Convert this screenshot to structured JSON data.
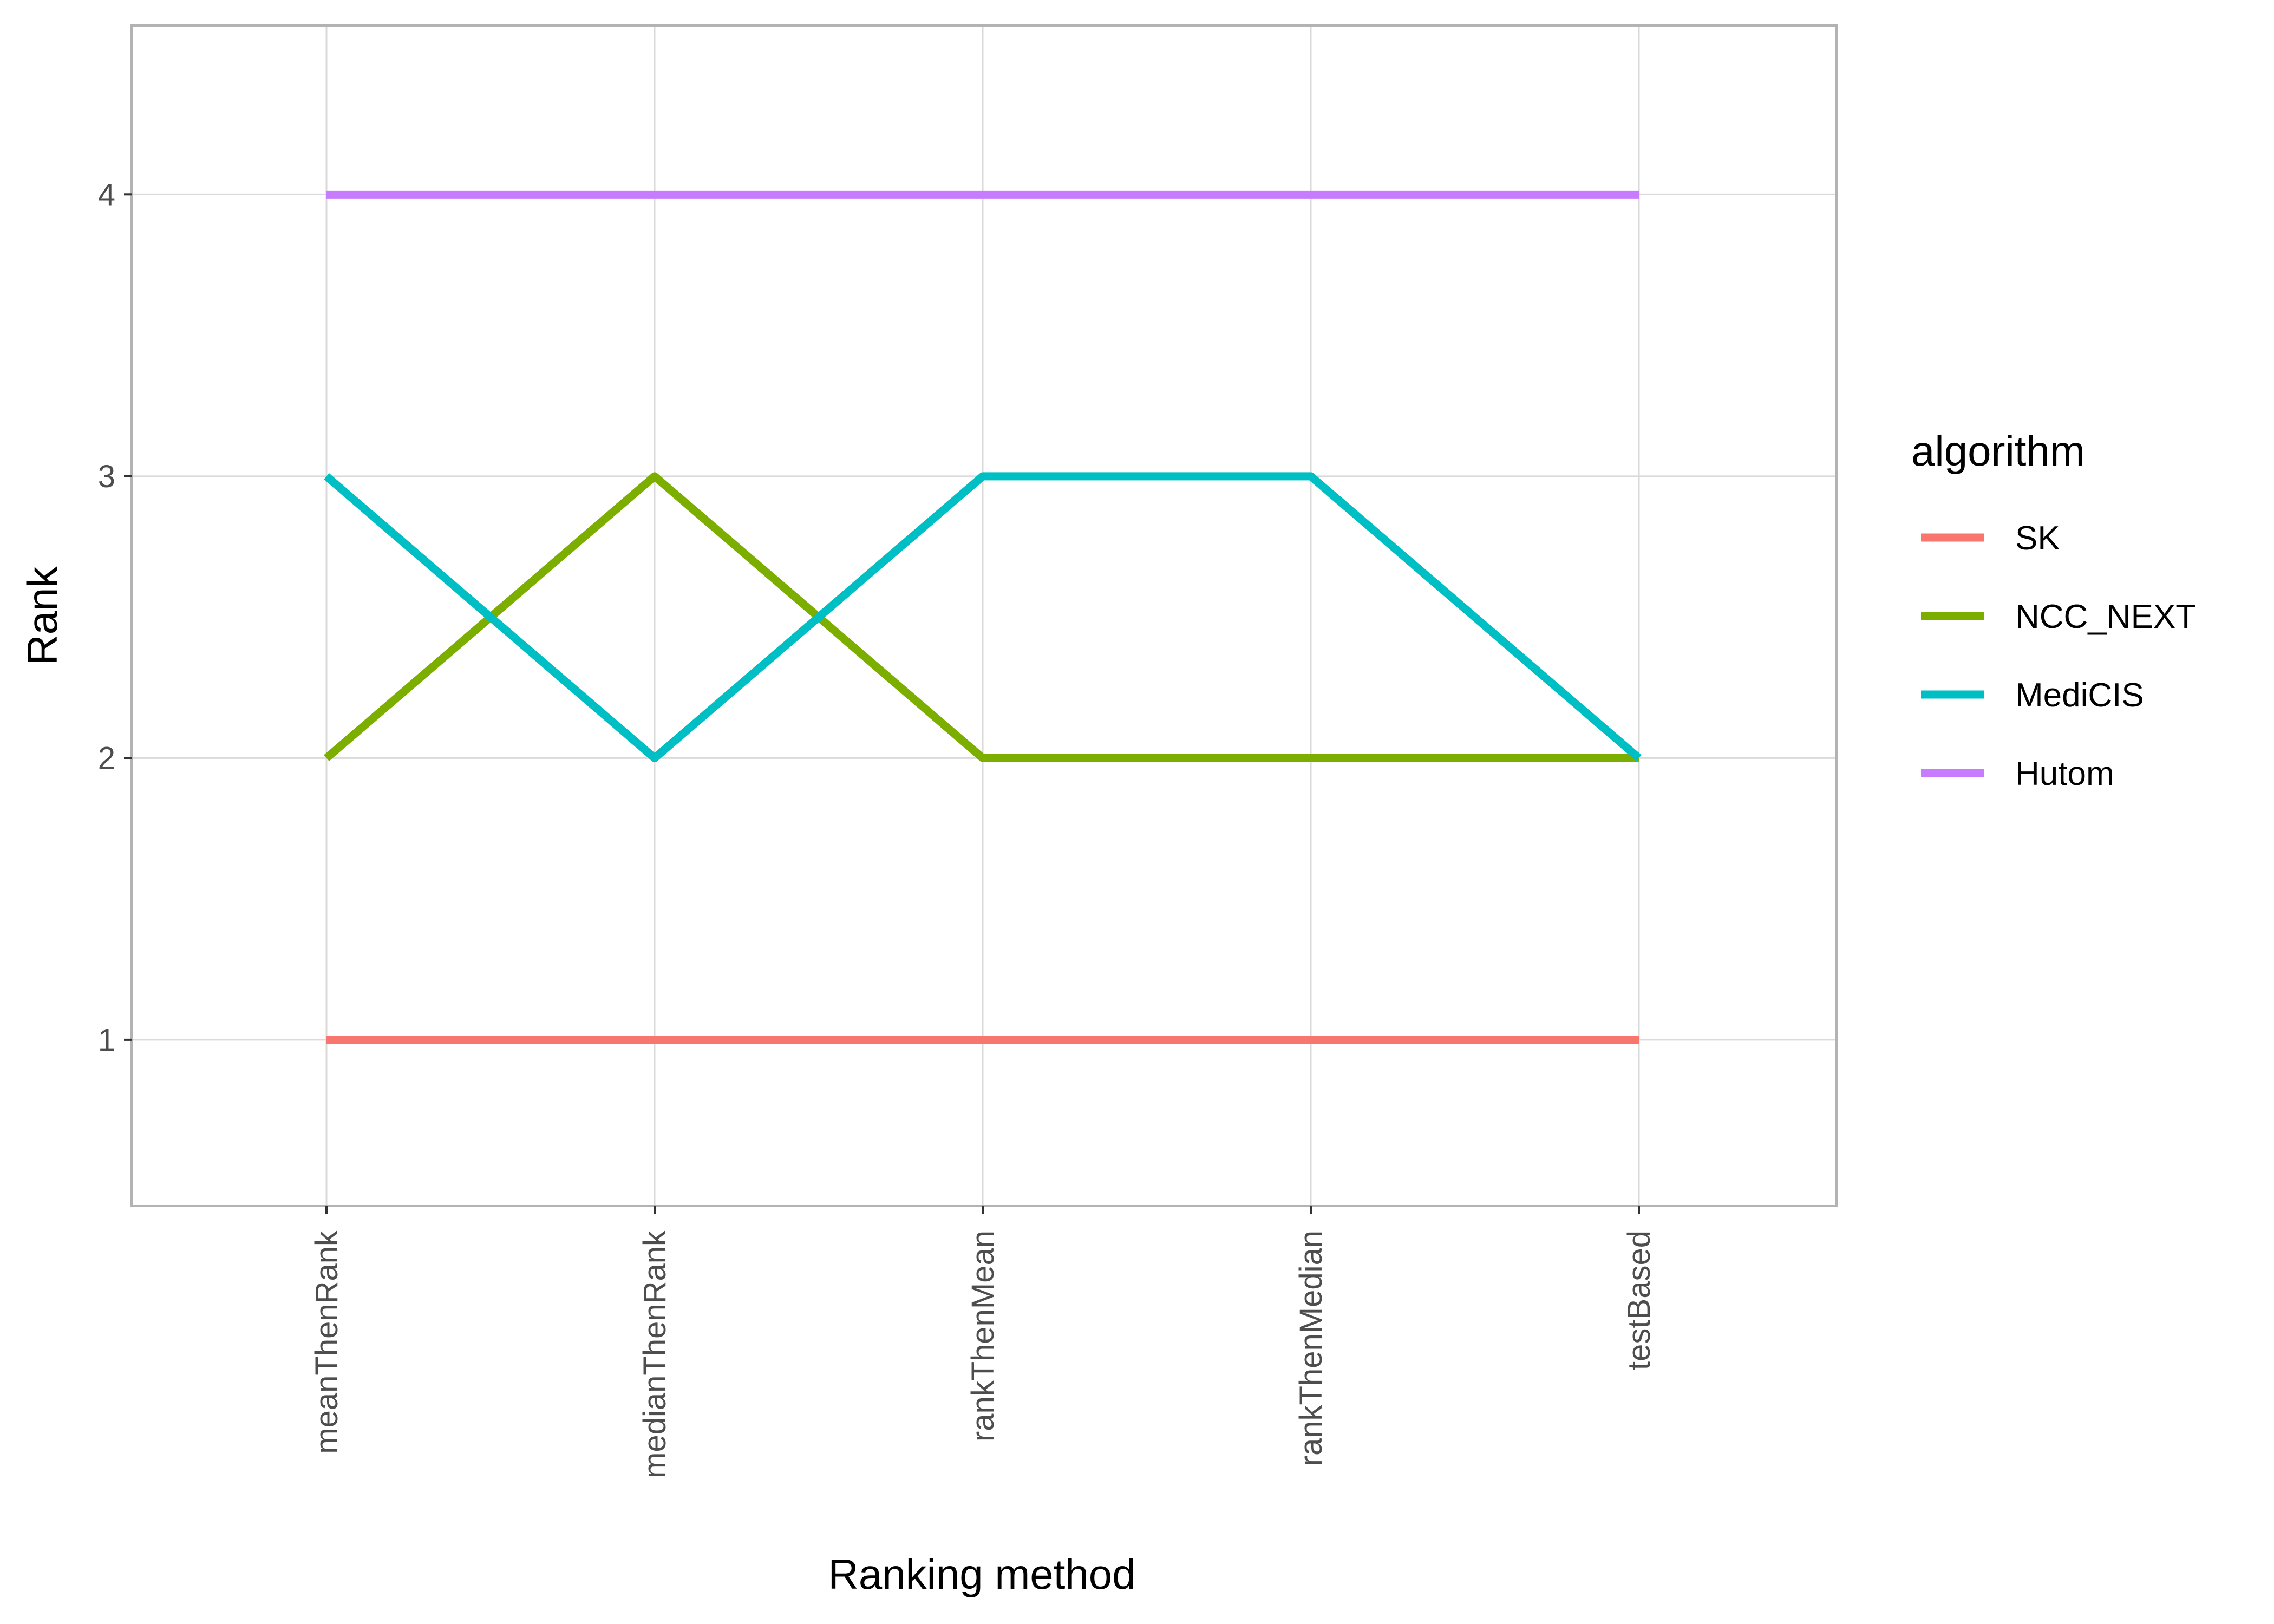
{
  "chart_data": {
    "type": "line",
    "title": "",
    "xlabel": "Ranking method",
    "ylabel": "Rank",
    "categories": [
      "meanThenRank",
      "medianThenRank",
      "rankThenMean",
      "rankThenMedian",
      "testBased"
    ],
    "yticks": [
      1,
      2,
      3,
      4
    ],
    "ylim": [
      0.41,
      4.6
    ],
    "grid": true,
    "legend": {
      "title": "algorithm",
      "position": "right"
    },
    "series": [
      {
        "name": "SK",
        "color": "#F8766D",
        "values": [
          1,
          1,
          1,
          1,
          1
        ]
      },
      {
        "name": "NCC_NEXT",
        "color": "#7CAE00",
        "values": [
          2,
          3,
          2,
          2,
          2
        ]
      },
      {
        "name": "MediCIS",
        "color": "#00BFC4",
        "values": [
          3,
          2,
          3,
          3,
          2
        ]
      },
      {
        "name": "Hutom",
        "color": "#C77CFF",
        "values": [
          4,
          4,
          4,
          4,
          4
        ]
      }
    ]
  }
}
